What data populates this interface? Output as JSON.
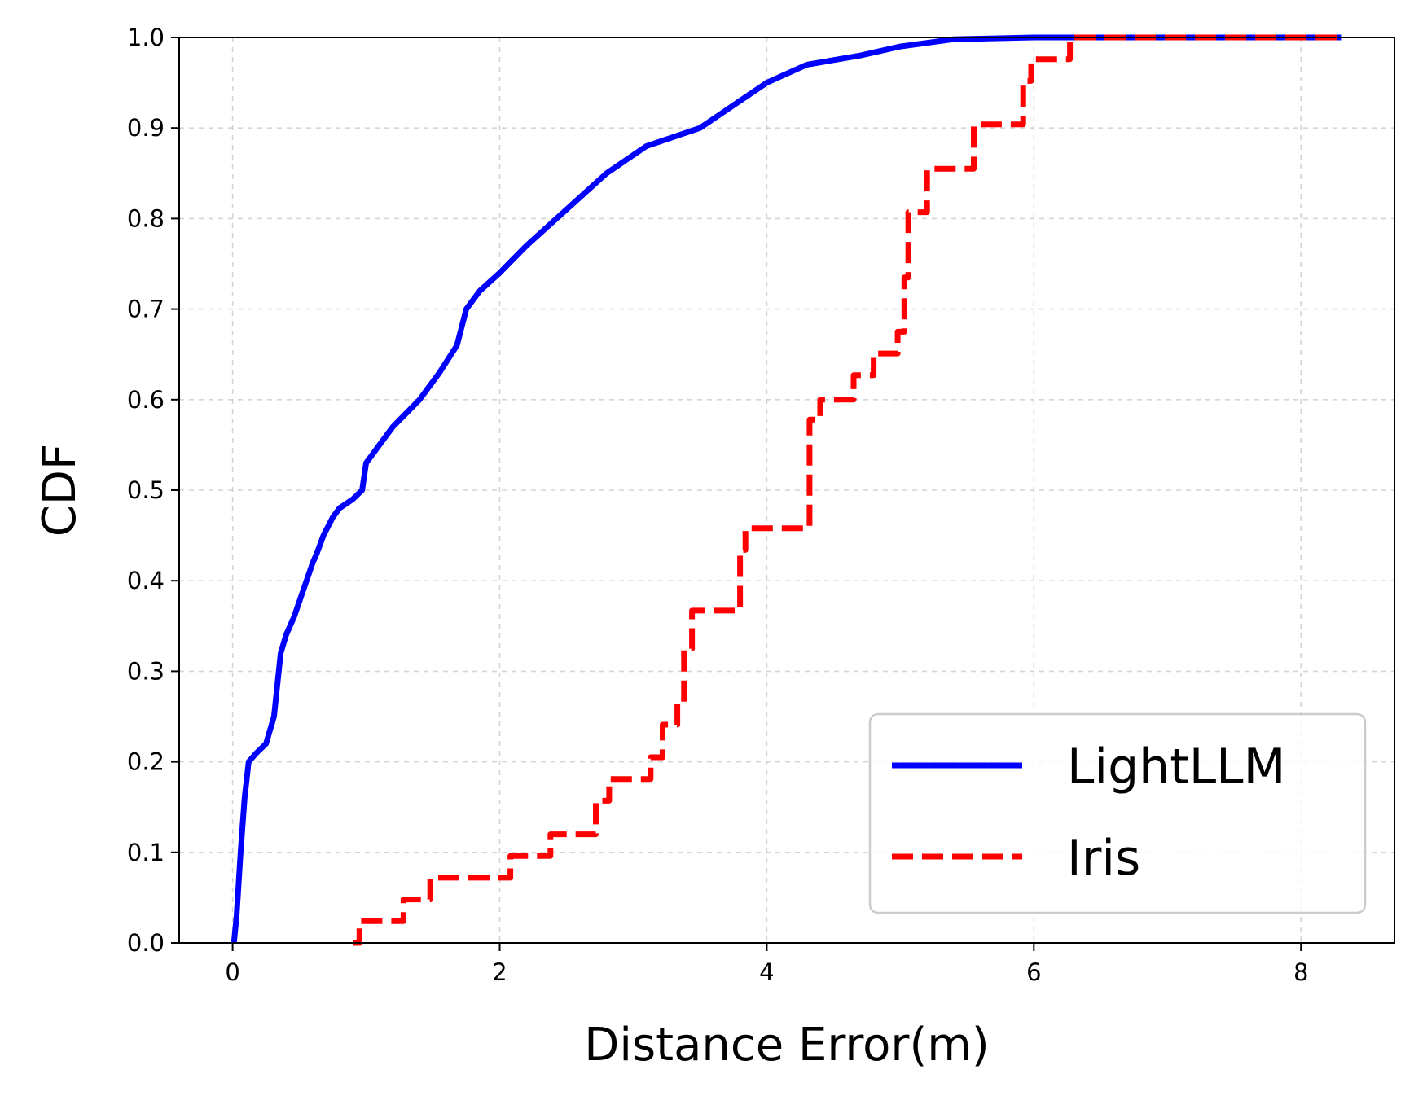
{
  "chart_data": {
    "type": "line",
    "title": "",
    "xlabel": "Distance Error(m)",
    "ylabel": "CDF",
    "xlim": [
      -0.4,
      8.7
    ],
    "ylim": [
      0.0,
      1.0
    ],
    "xticks": [
      0,
      2,
      4,
      6,
      8
    ],
    "xtick_labels": [
      "0",
      "2",
      "4",
      "6",
      "8"
    ],
    "yticks": [
      0.0,
      0.1,
      0.2,
      0.3,
      0.4,
      0.5,
      0.6,
      0.7,
      0.8,
      0.9,
      1.0
    ],
    "ytick_labels": [
      "0.0",
      "0.1",
      "0.2",
      "0.3",
      "0.4",
      "0.5",
      "0.6",
      "0.7",
      "0.8",
      "0.9",
      "1.0"
    ],
    "grid": true,
    "legend_position": "lower-right",
    "series": [
      {
        "name": "LightLLM",
        "color": "#0000ff",
        "style": "solid",
        "x": [
          0.01,
          0.03,
          0.06,
          0.09,
          0.12,
          0.15,
          0.18,
          0.25,
          0.31,
          0.36,
          0.4,
          0.46,
          0.53,
          0.6,
          0.63,
          0.68,
          0.75,
          0.8,
          0.9,
          0.97,
          1.0,
          1.2,
          1.4,
          1.55,
          1.68,
          1.75,
          1.85,
          2.0,
          2.2,
          2.5,
          2.8,
          3.1,
          3.5,
          3.8,
          4.0,
          4.3,
          4.7,
          5.0,
          5.4,
          6.0,
          7.0,
          8.3
        ],
        "y": [
          0.0,
          0.03,
          0.1,
          0.16,
          0.2,
          0.205,
          0.21,
          0.22,
          0.25,
          0.32,
          0.34,
          0.36,
          0.39,
          0.42,
          0.43,
          0.45,
          0.47,
          0.48,
          0.49,
          0.5,
          0.53,
          0.57,
          0.6,
          0.63,
          0.66,
          0.7,
          0.72,
          0.74,
          0.77,
          0.81,
          0.85,
          0.88,
          0.9,
          0.93,
          0.95,
          0.97,
          0.98,
          0.99,
          0.998,
          1.0,
          1.0,
          1.0
        ]
      },
      {
        "name": "Iris",
        "color": "#ff0000",
        "style": "dashed",
        "x": [
          0.9,
          0.95,
          0.95,
          1.28,
          1.28,
          1.48,
          1.48,
          2.08,
          2.08,
          2.38,
          2.38,
          2.72,
          2.72,
          2.82,
          2.82,
          3.13,
          3.13,
          3.22,
          3.22,
          3.33,
          3.33,
          3.38,
          3.38,
          3.44,
          3.44,
          3.8,
          3.8,
          3.84,
          3.84,
          4.32,
          4.32,
          4.4,
          4.4,
          4.65,
          4.65,
          4.8,
          4.8,
          4.98,
          4.98,
          5.03,
          5.03,
          5.06,
          5.06,
          5.2,
          5.2,
          5.55,
          5.55,
          5.92,
          5.92,
          5.98,
          5.98,
          6.27,
          6.27,
          8.3
        ],
        "y": [
          0.0,
          0.0,
          0.024,
          0.024,
          0.048,
          0.048,
          0.072,
          0.072,
          0.096,
          0.096,
          0.12,
          0.12,
          0.157,
          0.157,
          0.181,
          0.181,
          0.205,
          0.205,
          0.241,
          0.241,
          0.265,
          0.265,
          0.325,
          0.325,
          0.367,
          0.367,
          0.434,
          0.434,
          0.458,
          0.458,
          0.578,
          0.578,
          0.6,
          0.6,
          0.627,
          0.627,
          0.651,
          0.651,
          0.675,
          0.675,
          0.735,
          0.735,
          0.807,
          0.807,
          0.855,
          0.855,
          0.904,
          0.904,
          0.952,
          0.952,
          0.976,
          0.976,
          1.0,
          1.0
        ]
      }
    ]
  }
}
